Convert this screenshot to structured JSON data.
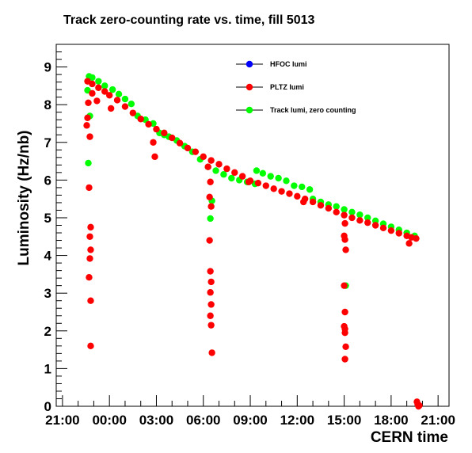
{
  "chart_data": {
    "type": "scatter",
    "title": "Track zero-counting rate vs. time, fill 5013",
    "xlabel": "CERN time",
    "ylabel": "Luminosity (Hz/nb)",
    "x_unit": "hours from 21:00",
    "xlim": [
      -0.4,
      24.7
    ],
    "ylim": [
      0,
      9.6
    ],
    "x_ticks": [
      {
        "value": 0,
        "label": "21:00"
      },
      {
        "value": 3,
        "label": "00:00"
      },
      {
        "value": 6,
        "label": "03:00"
      },
      {
        "value": 9,
        "label": "06:00"
      },
      {
        "value": 12,
        "label": "09:00"
      },
      {
        "value": 15,
        "label": "12:00"
      },
      {
        "value": 18,
        "label": "15:00"
      },
      {
        "value": 21,
        "label": "18:00"
      },
      {
        "value": 24,
        "label": "21:00"
      }
    ],
    "y_ticks": [
      0,
      1,
      2,
      3,
      4,
      5,
      6,
      7,
      8,
      9
    ],
    "grid": false,
    "legend_position": "top-right",
    "series": [
      {
        "name": "HFOC lumi",
        "color": "#0000ff",
        "points": []
      },
      {
        "name": "PLTZ lumi",
        "color": "#ff0000",
        "points": [
          [
            1.6,
            8.62
          ],
          [
            1.9,
            8.55
          ],
          [
            2.3,
            8.45
          ],
          [
            2.7,
            8.35
          ],
          [
            3.0,
            8.25
          ],
          [
            3.5,
            8.12
          ],
          [
            4.0,
            7.95
          ],
          [
            4.5,
            7.78
          ],
          [
            5.0,
            7.62
          ],
          [
            5.5,
            7.48
          ],
          [
            6.0,
            7.35
          ],
          [
            6.5,
            7.25
          ],
          [
            7.0,
            7.12
          ],
          [
            7.5,
            6.98
          ],
          [
            8.0,
            6.85
          ],
          [
            8.5,
            6.75
          ],
          [
            9.0,
            6.62
          ],
          [
            9.5,
            6.52
          ],
          [
            10.0,
            6.42
          ],
          [
            10.5,
            6.3
          ],
          [
            11.0,
            6.2
          ],
          [
            11.5,
            6.1
          ],
          [
            12.0,
            5.98
          ],
          [
            12.5,
            5.92
          ],
          [
            13.0,
            5.85
          ],
          [
            13.5,
            5.77
          ],
          [
            14.0,
            5.7
          ],
          [
            14.5,
            5.64
          ],
          [
            15.0,
            5.57
          ],
          [
            15.5,
            5.5
          ],
          [
            16.0,
            5.42
          ],
          [
            16.5,
            5.33
          ],
          [
            17.0,
            5.25
          ],
          [
            17.5,
            5.15
          ],
          [
            18.0,
            5.07
          ],
          [
            18.5,
            5.0
          ],
          [
            19.0,
            4.93
          ],
          [
            19.5,
            4.87
          ],
          [
            20.0,
            4.8
          ],
          [
            20.5,
            4.73
          ],
          [
            21.0,
            4.66
          ],
          [
            21.5,
            4.59
          ],
          [
            22.0,
            4.52
          ],
          [
            22.3,
            4.48
          ],
          [
            22.6,
            4.45
          ],
          [
            1.55,
            7.45
          ],
          [
            1.6,
            7.65
          ],
          [
            1.65,
            8.05
          ],
          [
            1.75,
            7.15
          ],
          [
            1.7,
            5.8
          ],
          [
            1.8,
            4.75
          ],
          [
            1.75,
            4.5
          ],
          [
            1.8,
            4.15
          ],
          [
            1.75,
            3.92
          ],
          [
            1.7,
            3.42
          ],
          [
            1.8,
            2.8
          ],
          [
            1.8,
            1.6
          ],
          [
            1.9,
            8.3
          ],
          [
            2.2,
            8.1
          ],
          [
            3.1,
            7.9
          ],
          [
            5.8,
            7.0
          ],
          [
            5.9,
            6.62
          ],
          [
            9.3,
            6.35
          ],
          [
            9.45,
            5.95
          ],
          [
            9.4,
            5.55
          ],
          [
            9.5,
            5.3
          ],
          [
            9.4,
            4.4
          ],
          [
            9.45,
            3.58
          ],
          [
            9.5,
            3.3
          ],
          [
            9.45,
            3.02
          ],
          [
            9.5,
            2.7
          ],
          [
            9.45,
            2.4
          ],
          [
            9.5,
            2.15
          ],
          [
            9.55,
            1.42
          ],
          [
            11.9,
            5.95
          ],
          [
            15.4,
            5.42
          ],
          [
            18.05,
            4.85
          ],
          [
            18.0,
            4.52
          ],
          [
            18.05,
            4.42
          ],
          [
            18.1,
            4.15
          ],
          [
            18.0,
            3.2
          ],
          [
            18.05,
            2.5
          ],
          [
            18.0,
            2.12
          ],
          [
            18.05,
            2.05
          ],
          [
            18.05,
            1.95
          ],
          [
            18.1,
            1.58
          ],
          [
            18.05,
            1.25
          ],
          [
            22.15,
            4.32
          ],
          [
            22.65,
            0.12
          ],
          [
            22.7,
            0.05
          ],
          [
            22.8,
            0.02
          ],
          [
            22.75,
            0.0
          ]
        ]
      },
      {
        "name": "Track lumi, zero counting",
        "color": "#00ff00",
        "points": [
          [
            1.7,
            8.75
          ],
          [
            1.9,
            8.72
          ],
          [
            2.3,
            8.62
          ],
          [
            2.7,
            8.5
          ],
          [
            3.2,
            8.4
          ],
          [
            3.6,
            8.28
          ],
          [
            4.0,
            8.15
          ],
          [
            4.4,
            8.02
          ],
          [
            4.8,
            7.7
          ],
          [
            5.3,
            7.6
          ],
          [
            5.8,
            7.5
          ],
          [
            6.2,
            7.25
          ],
          [
            6.5,
            7.2
          ],
          [
            6.8,
            7.15
          ],
          [
            7.3,
            7.05
          ],
          [
            7.8,
            6.9
          ],
          [
            8.3,
            6.75
          ],
          [
            8.8,
            6.55
          ],
          [
            9.3,
            6.35
          ],
          [
            9.8,
            6.25
          ],
          [
            10.3,
            6.15
          ],
          [
            10.8,
            6.05
          ],
          [
            11.3,
            6.0
          ],
          [
            11.8,
            5.95
          ],
          [
            12.3,
            5.9
          ],
          [
            12.4,
            6.25
          ],
          [
            12.8,
            6.18
          ],
          [
            13.3,
            6.1
          ],
          [
            13.8,
            6.05
          ],
          [
            14.3,
            5.98
          ],
          [
            14.8,
            5.85
          ],
          [
            15.3,
            5.82
          ],
          [
            15.8,
            5.75
          ],
          [
            16.0,
            5.5
          ],
          [
            16.5,
            5.42
          ],
          [
            17.0,
            5.35
          ],
          [
            17.5,
            5.3
          ],
          [
            18.0,
            5.22
          ],
          [
            18.5,
            5.15
          ],
          [
            19.0,
            5.08
          ],
          [
            19.5,
            5.0
          ],
          [
            20.0,
            4.92
          ],
          [
            20.5,
            4.84
          ],
          [
            21.0,
            4.76
          ],
          [
            21.5,
            4.68
          ],
          [
            22.0,
            4.6
          ],
          [
            22.5,
            4.52
          ],
          [
            1.6,
            8.38
          ],
          [
            1.75,
            7.7
          ],
          [
            1.65,
            6.45
          ],
          [
            9.55,
            5.45
          ],
          [
            9.45,
            4.98
          ],
          [
            18.1,
            3.2
          ]
        ]
      }
    ]
  }
}
